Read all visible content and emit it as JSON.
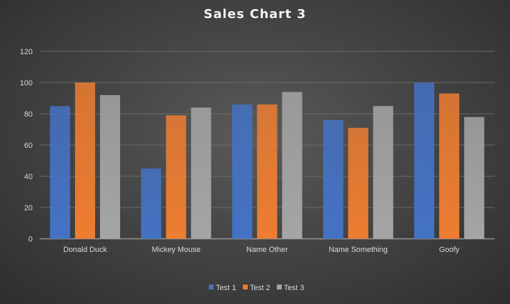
{
  "chart_data": {
    "type": "bar",
    "title": "Sales Chart 3",
    "xlabel": "",
    "ylabel": "",
    "categories": [
      "Donald Duck",
      "Mickey Mouse",
      "Name Other",
      "Name Something",
      "Goofy"
    ],
    "series": [
      {
        "name": "Test 1",
        "color": "#4472c4",
        "values": [
          85,
          45,
          86,
          76,
          100
        ]
      },
      {
        "name": "Test 2",
        "color": "#ed7d31",
        "values": [
          100,
          79,
          86,
          71,
          93
        ]
      },
      {
        "name": "Test 3",
        "color": "#a5a5a5",
        "values": [
          92,
          84,
          94,
          85,
          78
        ]
      }
    ],
    "ylim": [
      0,
      120
    ],
    "yticks": [
      0,
      20,
      40,
      60,
      80,
      100,
      120
    ],
    "grid": true,
    "legend": "bottom"
  }
}
